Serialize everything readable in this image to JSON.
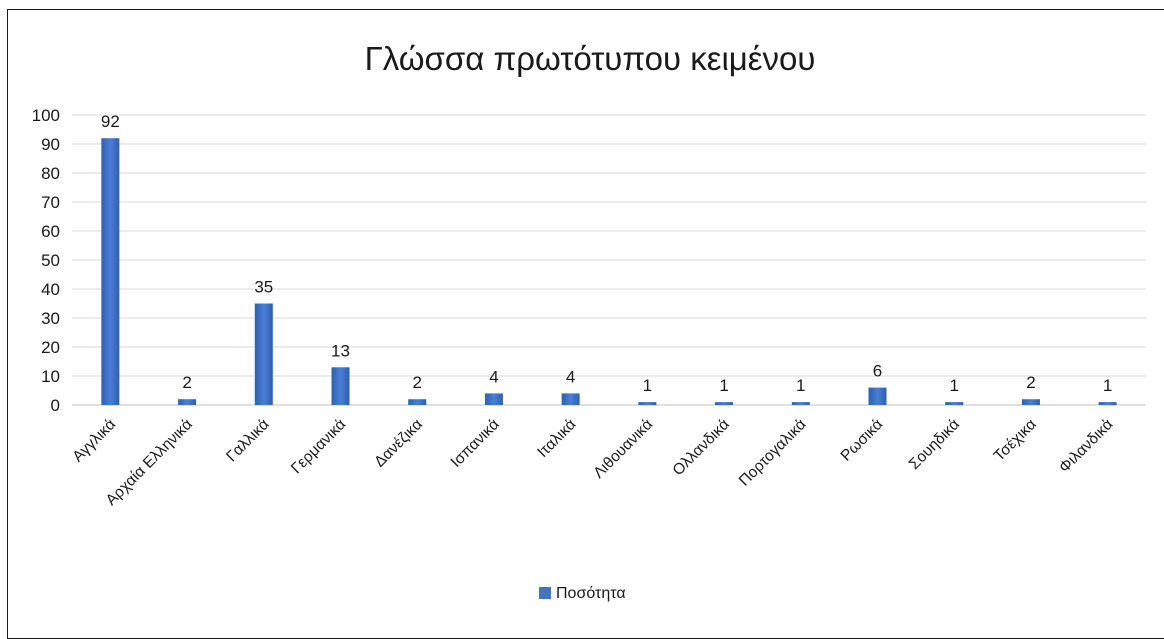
{
  "chart_data": {
    "type": "bar",
    "title": "Γλώσσα πρωτότυπου κειμένου",
    "xlabel": "",
    "ylabel": "",
    "ylim": [
      0,
      100
    ],
    "yticks": [
      0,
      10,
      20,
      30,
      40,
      50,
      60,
      70,
      80,
      90,
      100
    ],
    "grid": true,
    "legend_position": "bottom",
    "series_color": "#4472C4",
    "categories": [
      "Αγγλικά",
      "Αρχαία Ελληνικά",
      "Γαλλικά",
      "Γερμανικά",
      "Δανέζικα",
      "Ισπανικά",
      "Ιταλικά",
      "Λιθουανικά",
      "Ολλανδικά",
      "Πορτογαλικά",
      "Ρωσικά",
      "Σουηδικά",
      "Τσέχικα",
      "Φιλανδικά"
    ],
    "series": [
      {
        "name": "Ποσότητα",
        "values": [
          92,
          2,
          35,
          13,
          2,
          4,
          4,
          1,
          1,
          1,
          6,
          1,
          2,
          1
        ]
      }
    ]
  }
}
